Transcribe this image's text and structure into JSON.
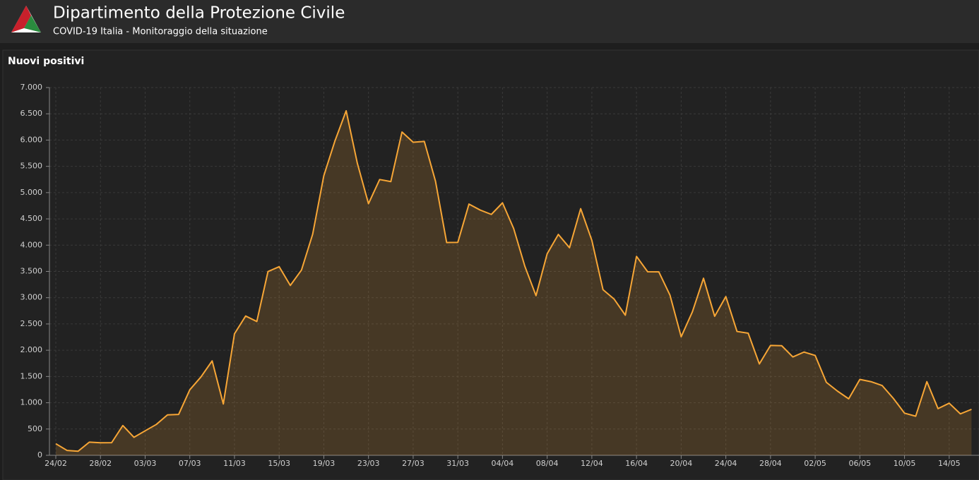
{
  "header": {
    "title": "Dipartimento della Protezione Civile",
    "subtitle": "COVID-19 Italia - Monitoraggio della situazione"
  },
  "chart_data": {
    "type": "area",
    "title": "Nuovi positivi",
    "color": "#f7a636",
    "grid": true,
    "categories": [
      "24/02",
      null,
      null,
      null,
      "28/02",
      null,
      null,
      null,
      "03/03",
      null,
      null,
      null,
      "07/03",
      null,
      null,
      null,
      "11/03",
      null,
      null,
      null,
      "15/03",
      null,
      null,
      null,
      "19/03",
      null,
      null,
      null,
      "23/03",
      null,
      null,
      null,
      "27/03",
      null,
      null,
      null,
      "31/03",
      null,
      null,
      null,
      "04/04",
      null,
      null,
      null,
      "08/04",
      null,
      null,
      null,
      "12/04",
      null,
      null,
      null,
      "16/04",
      null,
      null,
      null,
      "20/04",
      null,
      null,
      null,
      "24/04",
      null,
      null,
      null,
      "28/04",
      null,
      null,
      null,
      "02/05",
      null,
      null,
      null,
      "06/05",
      null,
      null,
      null,
      "10/05",
      null,
      null,
      null,
      "14/05",
      null,
      null
    ],
    "values": [
      221,
      93,
      78,
      250,
      238,
      240,
      566,
      342,
      466,
      587,
      769,
      778,
      1247,
      1492,
      1797,
      977,
      2313,
      2651,
      2547,
      3497,
      3590,
      3233,
      3526,
      4207,
      5322,
      5986,
      6557,
      5560,
      4789,
      5249,
      5210,
      6153,
      5959,
      5974,
      5217,
      4050,
      4053,
      4782,
      4668,
      4585,
      4805,
      4316,
      3599,
      3039,
      3836,
      4204,
      3951,
      4694,
      4092,
      3153,
      2972,
      2667,
      3786,
      3493,
      3491,
      3047,
      2256,
      2729,
      3370,
      2646,
      3021,
      2357,
      2324,
      1739,
      2091,
      2086,
      1872,
      1965,
      1900,
      1389,
      1221,
      1075,
      1444,
      1401,
      1327,
      1083,
      802,
      744,
      1402,
      888,
      992,
      789,
      875
    ],
    "ylim": [
      0,
      7000
    ],
    "yticks": [
      0,
      500,
      {
        "value": 1000,
        "label": "1.000"
      },
      {
        "value": 1500,
        "label": "1.500"
      },
      {
        "value": 2000,
        "label": "2.000"
      },
      {
        "value": 2500,
        "label": "2.500"
      },
      {
        "value": 3000,
        "label": "3.000"
      },
      {
        "value": 3500,
        "label": "3.500"
      },
      {
        "value": 4000,
        "label": "4.000"
      },
      {
        "value": 4500,
        "label": "4.500"
      },
      {
        "value": 5000,
        "label": "5.000"
      },
      {
        "value": 5500,
        "label": "5.500"
      },
      {
        "value": 6000,
        "label": "6.000"
      },
      {
        "value": 6500,
        "label": "6.500"
      },
      {
        "value": 7000,
        "label": "7.000"
      }
    ]
  }
}
